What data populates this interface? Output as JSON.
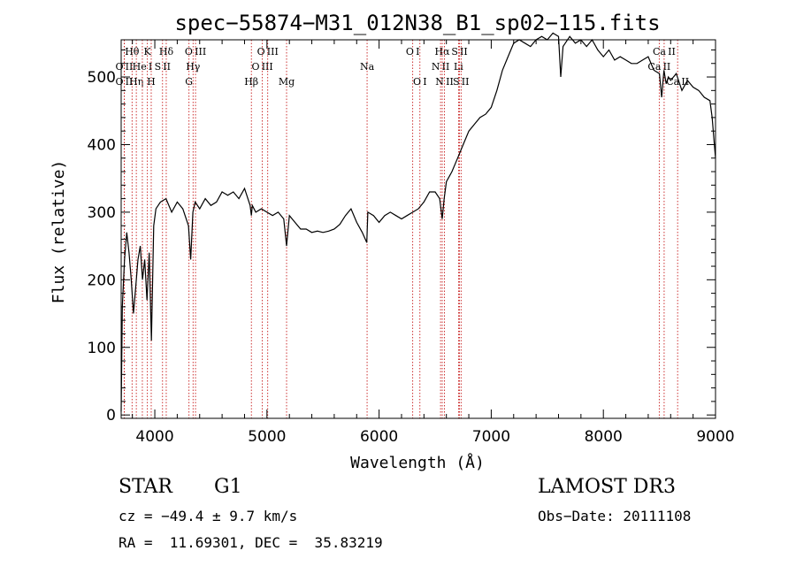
{
  "chart_data": {
    "type": "line",
    "title": "spec−55874−M31_012N38_B1_sp02−115.fits",
    "xlabel": "Wavelength (Å)",
    "ylabel": "Flux (relative)",
    "xlim": [
      3700,
      9000
    ],
    "ylim": [
      -5,
      555
    ],
    "x_ticks": [
      {
        "value": 4000,
        "label": "4000"
      },
      {
        "value": 5000,
        "label": "5000"
      },
      {
        "value": 6000,
        "label": "6000"
      },
      {
        "value": 7000,
        "label": "7000"
      },
      {
        "value": 8000,
        "label": "8000"
      },
      {
        "value": 9000,
        "label": "9000"
      }
    ],
    "y_ticks": [
      {
        "value": 0,
        "label": "0"
      },
      {
        "value": 100,
        "label": "100"
      },
      {
        "value": 200,
        "label": "200"
      },
      {
        "value": 300,
        "label": "300"
      },
      {
        "value": 400,
        "label": "400"
      },
      {
        "value": 500,
        "label": "500"
      }
    ],
    "series": [
      {
        "name": "flux",
        "x": [
          3700,
          3710,
          3730,
          3750,
          3770,
          3790,
          3810,
          3830,
          3850,
          3870,
          3890,
          3910,
          3930,
          3950,
          3970,
          3990,
          4010,
          4050,
          4100,
          4150,
          4200,
          4250,
          4300,
          4320,
          4340,
          4360,
          4400,
          4450,
          4500,
          4550,
          4600,
          4650,
          4700,
          4750,
          4800,
          4850,
          4861,
          4870,
          4900,
          4950,
          5000,
          5050,
          5100,
          5150,
          5175,
          5200,
          5250,
          5300,
          5350,
          5400,
          5450,
          5500,
          5550,
          5600,
          5650,
          5700,
          5750,
          5800,
          5850,
          5890,
          5900,
          5950,
          6000,
          6050,
          6100,
          6150,
          6200,
          6250,
          6300,
          6350,
          6400,
          6450,
          6500,
          6540,
          6563,
          6580,
          6600,
          6650,
          6700,
          6750,
          6800,
          6850,
          6900,
          6950,
          7000,
          7050,
          7100,
          7150,
          7200,
          7250,
          7300,
          7350,
          7400,
          7450,
          7500,
          7550,
          7600,
          7620,
          7640,
          7700,
          7750,
          7800,
          7850,
          7900,
          7950,
          8000,
          8050,
          8100,
          8150,
          8200,
          8250,
          8300,
          8350,
          8400,
          8450,
          8500,
          8520,
          8540,
          8560,
          8580,
          8600,
          8650,
          8700,
          8750,
          8800,
          8850,
          8900,
          8950,
          8970,
          8990,
          9000
        ],
        "y": [
          5,
          160,
          230,
          270,
          240,
          200,
          150,
          190,
          230,
          250,
          200,
          230,
          170,
          240,
          110,
          280,
          305,
          315,
          320,
          300,
          315,
          305,
          280,
          230,
          300,
          315,
          305,
          320,
          310,
          315,
          330,
          325,
          330,
          320,
          335,
          310,
          295,
          310,
          300,
          305,
          300,
          295,
          300,
          290,
          250,
          295,
          285,
          275,
          275,
          270,
          272,
          270,
          272,
          275,
          282,
          295,
          305,
          285,
          270,
          255,
          300,
          295,
          285,
          295,
          300,
          295,
          290,
          295,
          300,
          305,
          315,
          330,
          330,
          320,
          290,
          320,
          345,
          360,
          380,
          400,
          420,
          430,
          440,
          445,
          455,
          480,
          510,
          530,
          550,
          555,
          550,
          545,
          555,
          560,
          555,
          565,
          560,
          500,
          545,
          560,
          550,
          555,
          545,
          555,
          540,
          530,
          540,
          525,
          530,
          525,
          520,
          520,
          525,
          530,
          510,
          505,
          470,
          510,
          490,
          500,
          495,
          505,
          480,
          495,
          485,
          480,
          470,
          465,
          440,
          400,
          380
        ]
      }
    ],
    "lines": [
      {
        "label": "O II",
        "x": 3727,
        "row": 2
      },
      {
        "label": "O II",
        "x": 3727,
        "row": 3
      },
      {
        "label": "Hθ",
        "x": 3797,
        "row": 1
      },
      {
        "label": "Hη",
        "x": 3835,
        "row": 3
      },
      {
        "label": "He I",
        "x": 3889,
        "row": 2
      },
      {
        "label": "K",
        "x": 3934,
        "row": 1
      },
      {
        "label": "H",
        "x": 3968,
        "row": 3
      },
      {
        "label": "S II",
        "x": 4069,
        "row": 2
      },
      {
        "label": "Hδ",
        "x": 4102,
        "row": 1
      },
      {
        "label": "G",
        "x": 4305,
        "row": 3
      },
      {
        "label": "O III",
        "x": 4363,
        "row": 1
      },
      {
        "label": "Hγ",
        "x": 4341,
        "row": 2
      },
      {
        "label": "Hβ",
        "x": 4861,
        "row": 3
      },
      {
        "label": "O III",
        "x": 4959,
        "row": 2
      },
      {
        "label": "O III",
        "x": 5007,
        "row": 1
      },
      {
        "label": "Mg",
        "x": 5175,
        "row": 3
      },
      {
        "label": "Na",
        "x": 5893,
        "row": 2
      },
      {
        "label": "O I",
        "x": 6300,
        "row": 1
      },
      {
        "label": "O I",
        "x": 6364,
        "row": 3
      },
      {
        "label": "N II",
        "x": 6548,
        "row": 2
      },
      {
        "label": "Hα",
        "x": 6563,
        "row": 1
      },
      {
        "label": "N II",
        "x": 6583,
        "row": 3
      },
      {
        "label": "Li",
        "x": 6708,
        "row": 2
      },
      {
        "label": "S II",
        "x": 6717,
        "row": 1
      },
      {
        "label": "S II",
        "x": 6731,
        "row": 3
      },
      {
        "label": "Ca II",
        "x": 8498,
        "row": 2
      },
      {
        "label": "Ca II",
        "x": 8542,
        "row": 1
      },
      {
        "label": "Ca II",
        "x": 8662,
        "row": 3
      }
    ]
  },
  "info": {
    "star_type": "STAR",
    "star_class": "G1",
    "survey": "LAMOST DR3",
    "cz": "cz = −49.4 ± 9.7 km/s",
    "obs_date": "Obs−Date: 20111108",
    "radec": "RA =  11.69301, DEC =  35.83219"
  },
  "colors": {
    "spectrum": "#000000",
    "line_marker": "#c00000",
    "background": "#ffffff"
  }
}
